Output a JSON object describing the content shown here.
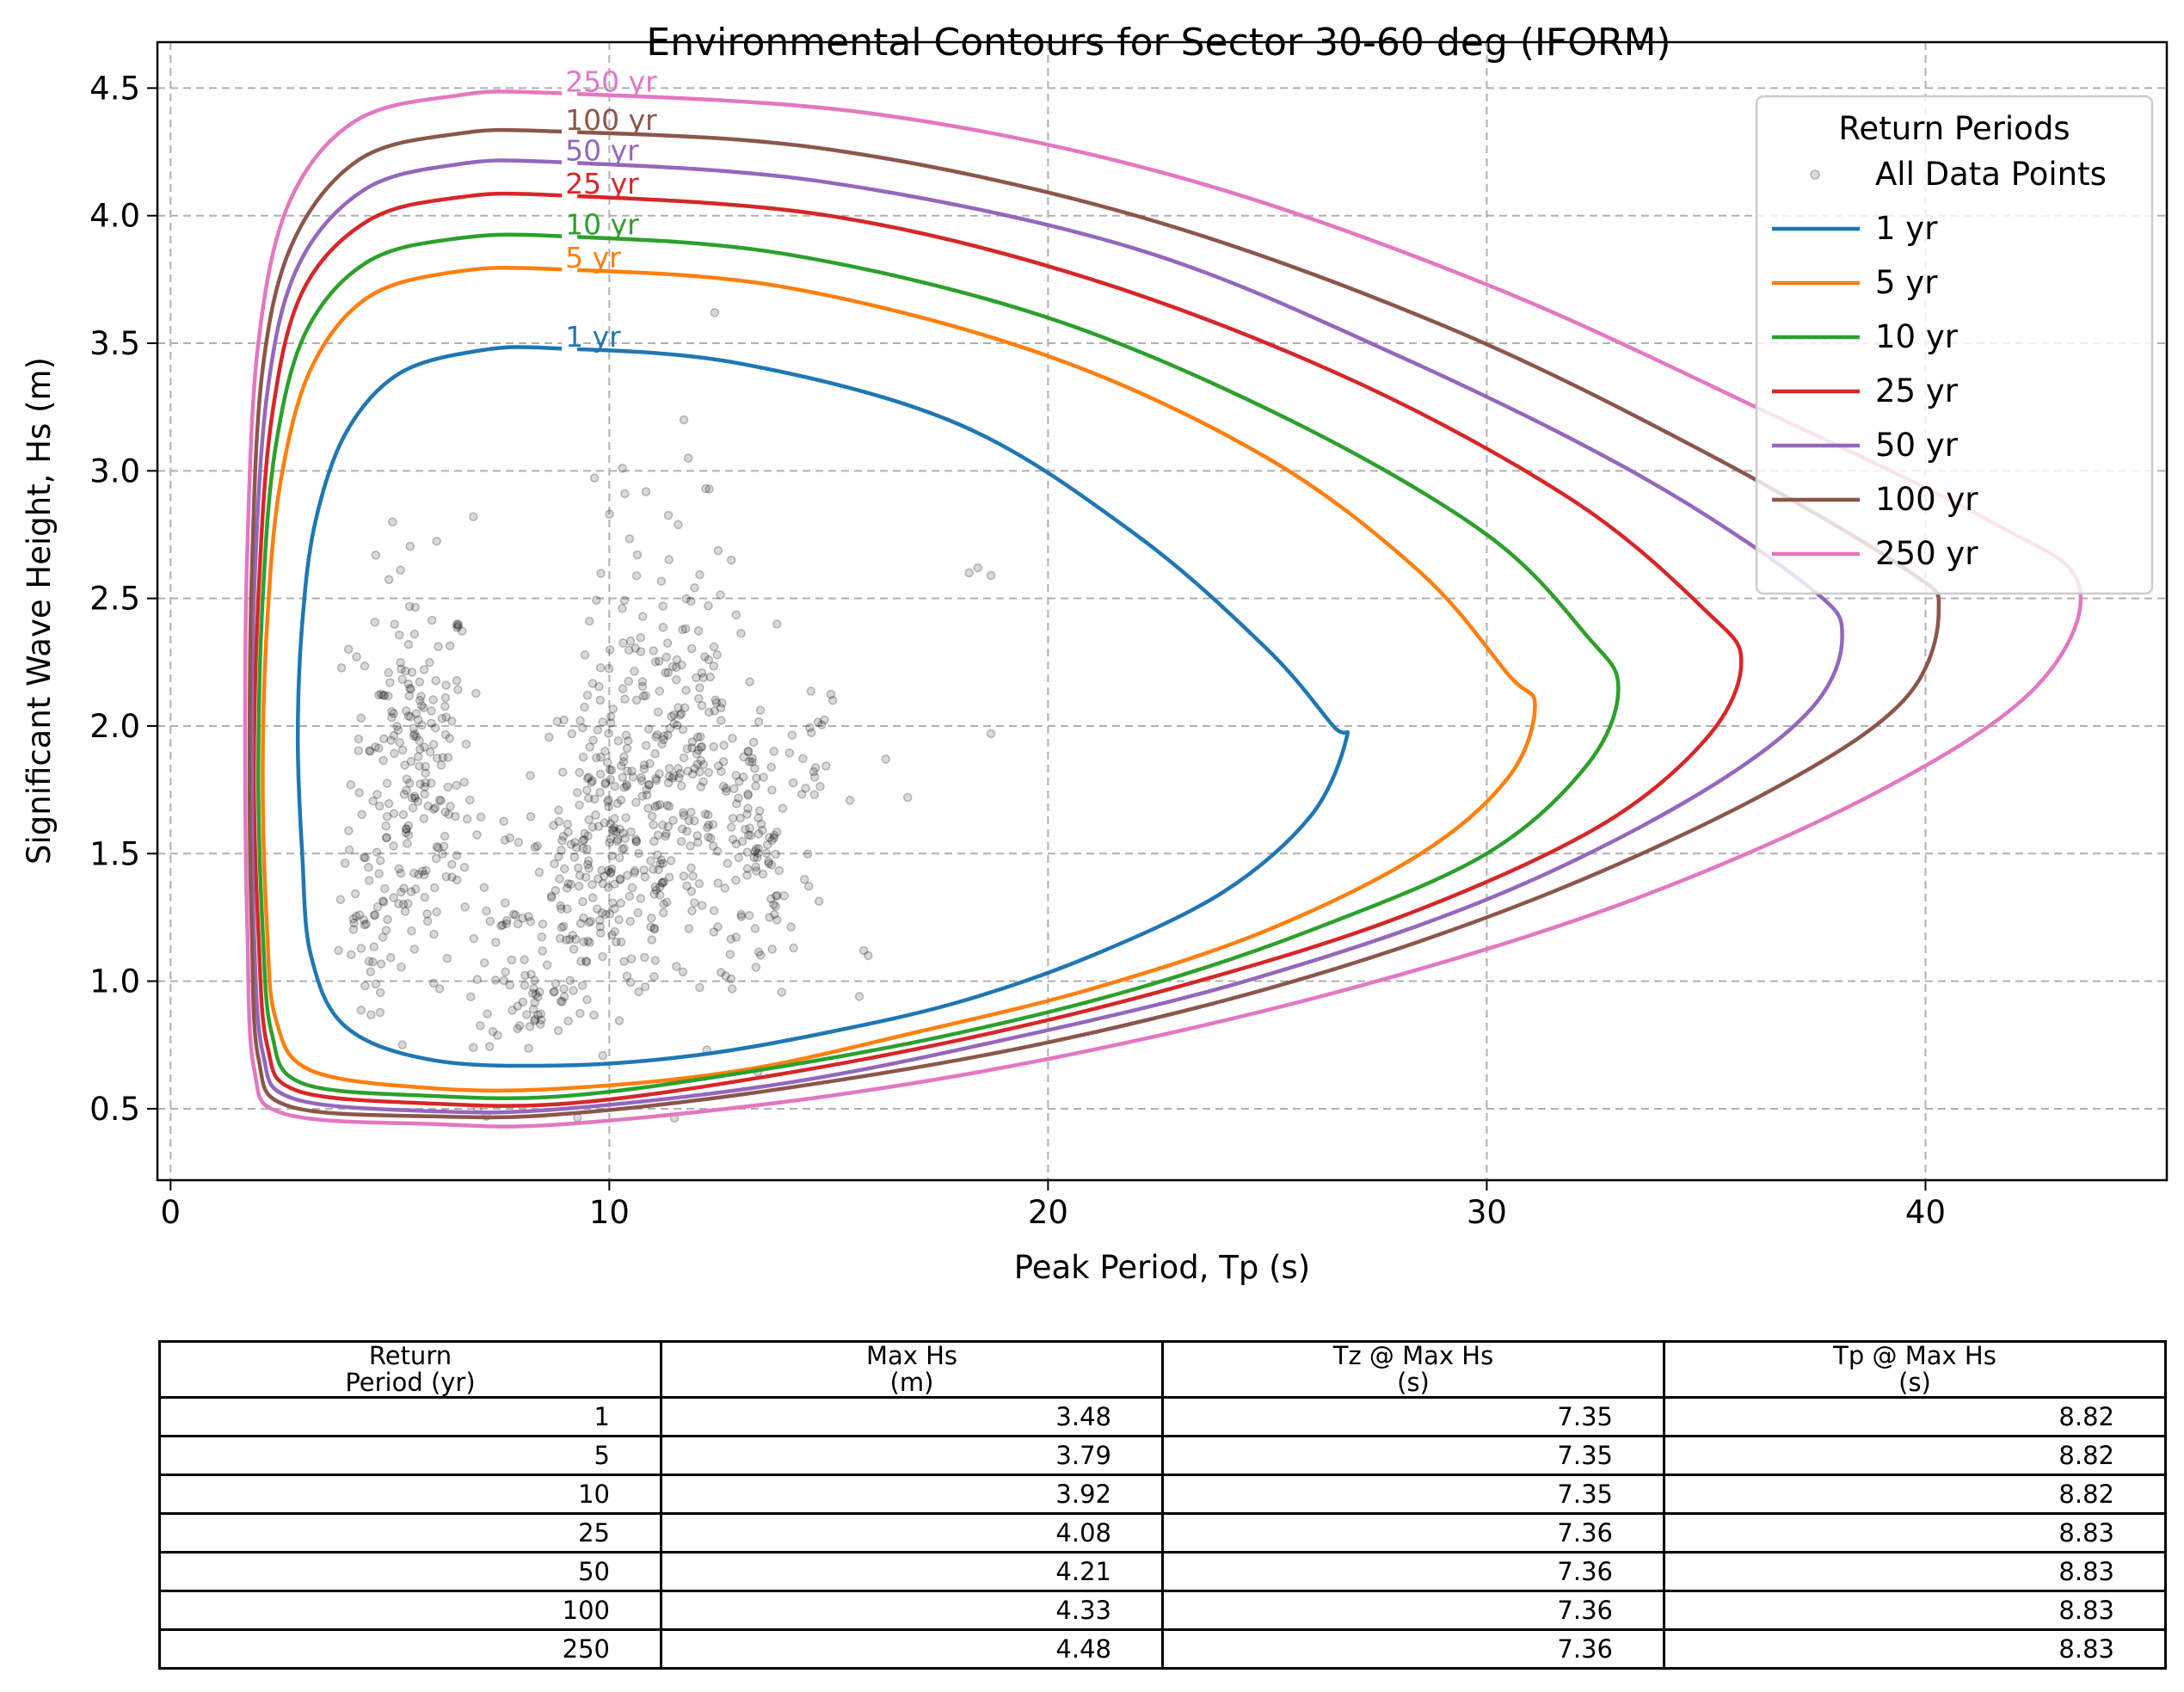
{
  "chart_data": {
    "type": "line",
    "title": "Environmental Contours for Sector 30-60 deg (IFORM)",
    "xlabel": "Peak Period, Tp (s)",
    "ylabel": "Significant Wave Height, Hs (m)",
    "xlim": [
      -0.3,
      45.5
    ],
    "ylim": [
      0.22,
      4.68
    ],
    "xticks": [
      0,
      10,
      20,
      30,
      40
    ],
    "yticks": [
      0.5,
      1.0,
      1.5,
      2.0,
      2.5,
      3.0,
      3.5,
      4.0,
      4.5
    ],
    "grid": true,
    "legend": {
      "title": "Return Periods",
      "placement": "top-right",
      "entries": [
        "All Data Points",
        "1 yr",
        "5 yr",
        "10 yr",
        "25 yr",
        "50 yr",
        "100 yr",
        "250 yr"
      ]
    },
    "series": [
      {
        "name": "1 yr",
        "color": "#1f77b4",
        "label": "1 yr",
        "points": [
          [
            8.8,
            3.48
          ],
          [
            13,
            3.42
          ],
          [
            18,
            3.18
          ],
          [
            22,
            2.75
          ],
          [
            25,
            2.3
          ],
          [
            26.5,
            2.0
          ],
          [
            26.8,
            1.95
          ],
          [
            26,
            1.65
          ],
          [
            24,
            1.35
          ],
          [
            21,
            1.1
          ],
          [
            18,
            0.92
          ],
          [
            15,
            0.8
          ],
          [
            12,
            0.71
          ],
          [
            9,
            0.67
          ],
          [
            6,
            0.69
          ],
          [
            4,
            0.82
          ],
          [
            3.2,
            1.1
          ],
          [
            3.0,
            1.5
          ],
          [
            2.9,
            1.95
          ],
          [
            3.0,
            2.4
          ],
          [
            3.3,
            2.8
          ],
          [
            4.0,
            3.15
          ],
          [
            5.2,
            3.38
          ],
          [
            7,
            3.47
          ],
          [
            8.8,
            3.48
          ]
        ]
      },
      {
        "name": "5 yr",
        "color": "#ff7f0e",
        "label": "5 yr",
        "points": [
          [
            8.8,
            3.79
          ],
          [
            14,
            3.72
          ],
          [
            20,
            3.45
          ],
          [
            25,
            3.05
          ],
          [
            28.5,
            2.6
          ],
          [
            30.5,
            2.2
          ],
          [
            31.1,
            2.08
          ],
          [
            30.5,
            1.8
          ],
          [
            28.5,
            1.5
          ],
          [
            25,
            1.2
          ],
          [
            21,
            0.97
          ],
          [
            17,
            0.8
          ],
          [
            13,
            0.65
          ],
          [
            9,
            0.58
          ],
          [
            6,
            0.58
          ],
          [
            3.2,
            0.65
          ],
          [
            2.4,
            0.85
          ],
          [
            2.2,
            1.2
          ],
          [
            2.1,
            1.8
          ],
          [
            2.2,
            2.4
          ],
          [
            2.5,
            2.95
          ],
          [
            3.2,
            3.4
          ],
          [
            4.5,
            3.68
          ],
          [
            6.5,
            3.78
          ],
          [
            8.8,
            3.79
          ]
        ]
      },
      {
        "name": "10 yr",
        "color": "#2ca02c",
        "label": "10 yr",
        "points": [
          [
            8.8,
            3.92
          ],
          [
            14,
            3.85
          ],
          [
            20,
            3.6
          ],
          [
            25.5,
            3.2
          ],
          [
            30,
            2.75
          ],
          [
            32.3,
            2.35
          ],
          [
            33,
            2.15
          ],
          [
            32.3,
            1.85
          ],
          [
            30,
            1.5
          ],
          [
            26,
            1.2
          ],
          [
            22,
            0.97
          ],
          [
            17.5,
            0.78
          ],
          [
            13,
            0.64
          ],
          [
            9,
            0.55
          ],
          [
            6,
            0.55
          ],
          [
            3,
            0.6
          ],
          [
            2.3,
            0.8
          ],
          [
            2.1,
            1.2
          ],
          [
            2.0,
            1.8
          ],
          [
            2.1,
            2.5
          ],
          [
            2.4,
            3.1
          ],
          [
            3.1,
            3.55
          ],
          [
            4.5,
            3.82
          ],
          [
            6.5,
            3.91
          ],
          [
            8.8,
            3.92
          ]
        ]
      },
      {
        "name": "25 yr",
        "color": "#d62728",
        "label": "25 yr",
        "points": [
          [
            8.8,
            4.08
          ],
          [
            15,
            4.0
          ],
          [
            21,
            3.75
          ],
          [
            27,
            3.35
          ],
          [
            32,
            2.88
          ],
          [
            35,
            2.45
          ],
          [
            35.8,
            2.25
          ],
          [
            35,
            1.95
          ],
          [
            32.5,
            1.6
          ],
          [
            28,
            1.25
          ],
          [
            23,
            0.98
          ],
          [
            18,
            0.77
          ],
          [
            13,
            0.61
          ],
          [
            9,
            0.52
          ],
          [
            6,
            0.52
          ],
          [
            2.9,
            0.57
          ],
          [
            2.2,
            0.75
          ],
          [
            2.0,
            1.2
          ],
          [
            1.9,
            1.8
          ],
          [
            2.0,
            2.5
          ],
          [
            2.3,
            3.2
          ],
          [
            3.0,
            3.7
          ],
          [
            4.5,
            3.98
          ],
          [
            6.5,
            4.07
          ],
          [
            8.8,
            4.08
          ]
        ]
      },
      {
        "name": "50 yr",
        "color": "#9467bd",
        "label": "50 yr",
        "points": [
          [
            8.8,
            4.21
          ],
          [
            15,
            4.13
          ],
          [
            22,
            3.87
          ],
          [
            28,
            3.45
          ],
          [
            33.5,
            2.98
          ],
          [
            37.3,
            2.55
          ],
          [
            38.1,
            2.35
          ],
          [
            37.3,
            2.05
          ],
          [
            34.5,
            1.7
          ],
          [
            30,
            1.32
          ],
          [
            24.5,
            1.0
          ],
          [
            19,
            0.77
          ],
          [
            14,
            0.6
          ],
          [
            9,
            0.5
          ],
          [
            6,
            0.49
          ],
          [
            2.8,
            0.54
          ],
          [
            2.1,
            0.72
          ],
          [
            1.9,
            1.2
          ],
          [
            1.85,
            1.8
          ],
          [
            1.9,
            2.5
          ],
          [
            2.2,
            3.3
          ],
          [
            2.9,
            3.8
          ],
          [
            4.4,
            4.1
          ],
          [
            6.5,
            4.2
          ],
          [
            8.8,
            4.21
          ]
        ]
      },
      {
        "name": "100 yr",
        "color": "#8c564b",
        "label": "100 yr",
        "points": [
          [
            8.8,
            4.33
          ],
          [
            15,
            4.26
          ],
          [
            22,
            4.0
          ],
          [
            29,
            3.57
          ],
          [
            35,
            3.07
          ],
          [
            39.5,
            2.62
          ],
          [
            40.3,
            2.45
          ],
          [
            39.5,
            2.1
          ],
          [
            36.5,
            1.75
          ],
          [
            31.5,
            1.35
          ],
          [
            26,
            1.02
          ],
          [
            20,
            0.76
          ],
          [
            14,
            0.58
          ],
          [
            9,
            0.48
          ],
          [
            6,
            0.47
          ],
          [
            2.7,
            0.51
          ],
          [
            2.0,
            0.7
          ],
          [
            1.85,
            1.2
          ],
          [
            1.8,
            1.8
          ],
          [
            1.85,
            2.6
          ],
          [
            2.1,
            3.4
          ],
          [
            2.8,
            3.9
          ],
          [
            4.3,
            4.22
          ],
          [
            6.5,
            4.32
          ],
          [
            8.8,
            4.33
          ]
        ]
      },
      {
        "name": "250 yr",
        "color": "#e377c2",
        "label": "250 yr",
        "points": [
          [
            8.8,
            4.48
          ],
          [
            16,
            4.4
          ],
          [
            23,
            4.15
          ],
          [
            30,
            3.73
          ],
          [
            36.5,
            3.22
          ],
          [
            41.5,
            2.8
          ],
          [
            43.5,
            2.55
          ],
          [
            42.5,
            2.15
          ],
          [
            39,
            1.75
          ],
          [
            33.5,
            1.33
          ],
          [
            27.5,
            1.0
          ],
          [
            21,
            0.73
          ],
          [
            15,
            0.55
          ],
          [
            9,
            0.44
          ],
          [
            6,
            0.44
          ],
          [
            2.6,
            0.48
          ],
          [
            1.9,
            0.66
          ],
          [
            1.75,
            1.2
          ],
          [
            1.7,
            1.9
          ],
          [
            1.75,
            2.7
          ],
          [
            2.0,
            3.5
          ],
          [
            2.7,
            4.05
          ],
          [
            4.2,
            4.37
          ],
          [
            6.5,
            4.47
          ],
          [
            8.8,
            4.48
          ]
        ]
      }
    ],
    "scatter": {
      "name": "All Data Points",
      "color": "#000000",
      "opacity": 0.15,
      "clusters": [
        {
          "cx": 5.5,
          "cy": 1.8,
          "sx": 0.7,
          "sy": 0.4,
          "n": 220
        },
        {
          "cx": 10.2,
          "cy": 1.55,
          "sx": 0.9,
          "sy": 0.32,
          "n": 230
        },
        {
          "cx": 12.0,
          "cy": 1.75,
          "sx": 0.9,
          "sy": 0.32,
          "n": 150
        },
        {
          "cx": 13.5,
          "cy": 1.5,
          "sx": 0.6,
          "sy": 0.3,
          "n": 80
        },
        {
          "cx": 8.3,
          "cy": 0.92,
          "sx": 0.5,
          "sy": 0.08,
          "n": 40
        },
        {
          "cx": 9.0,
          "cy": 1.35,
          "sx": 0.5,
          "sy": 0.2,
          "n": 40
        },
        {
          "cx": 11.0,
          "cy": 2.3,
          "sx": 0.8,
          "sy": 0.35,
          "n": 60
        },
        {
          "cx": 7.5,
          "cy": 1.3,
          "sx": 0.5,
          "sy": 0.25,
          "n": 30
        },
        {
          "cx": 4.5,
          "cy": 1.1,
          "sx": 0.3,
          "sy": 0.15,
          "n": 25
        },
        {
          "cx": 14.8,
          "cy": 1.85,
          "sx": 0.3,
          "sy": 0.15,
          "n": 15
        }
      ],
      "outliers": [
        [
          18.2,
          2.6
        ],
        [
          18.4,
          2.62
        ],
        [
          18.7,
          2.59
        ],
        [
          12.4,
          3.62
        ],
        [
          11.7,
          3.2
        ],
        [
          11.8,
          3.05
        ],
        [
          12.2,
          2.93
        ],
        [
          10.3,
          3.01
        ],
        [
          6.9,
          2.82
        ],
        [
          16.3,
          1.87
        ],
        [
          16.8,
          1.72
        ],
        [
          18.7,
          1.97
        ],
        [
          15.8,
          1.12
        ],
        [
          15.9,
          1.1
        ],
        [
          15.7,
          0.94
        ],
        [
          6.9,
          0.74
        ],
        [
          7.0,
          0.5
        ],
        [
          7.2,
          0.47
        ],
        [
          14.2,
          1.13
        ],
        [
          12.8,
          0.97
        ]
      ]
    }
  },
  "table": {
    "headers": [
      "Return\nPeriod (yr)",
      "Max Hs\n(m)",
      "Tz @ Max Hs\n(s)",
      "Tp @ Max Hs\n(s)"
    ],
    "rows": [
      [
        "1",
        "3.48",
        "7.35",
        "8.82"
      ],
      [
        "5",
        "3.79",
        "7.35",
        "8.82"
      ],
      [
        "10",
        "3.92",
        "7.35",
        "8.82"
      ],
      [
        "25",
        "4.08",
        "7.36",
        "8.83"
      ],
      [
        "50",
        "4.21",
        "7.36",
        "8.83"
      ],
      [
        "100",
        "4.33",
        "7.36",
        "8.83"
      ],
      [
        "250",
        "4.48",
        "7.36",
        "8.83"
      ]
    ]
  }
}
